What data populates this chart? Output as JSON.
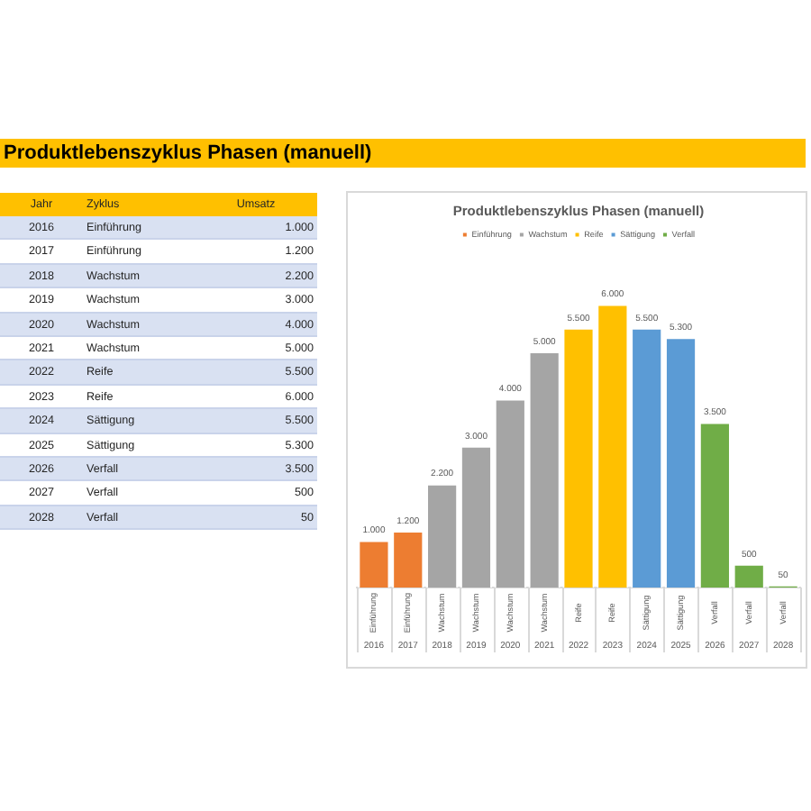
{
  "chart_data": {
    "type": "bar",
    "title": "Produktlebenszyklus Phasen (manuell)",
    "categories": [
      "2016",
      "2017",
      "2018",
      "2019",
      "2020",
      "2021",
      "2022",
      "2023",
      "2024",
      "2025",
      "2026",
      "2027",
      "2028"
    ],
    "series": [
      {
        "name": "Einführung",
        "color": "#ed7d31",
        "values": [
          1000,
          1200,
          null,
          null,
          null,
          null,
          null,
          null,
          null,
          null,
          null,
          null,
          null
        ],
        "value_labels": [
          "1.000",
          "1.200",
          null,
          null,
          null,
          null,
          null,
          null,
          null,
          null,
          null,
          null,
          null
        ]
      },
      {
        "name": "Wachstum",
        "color": "#a5a5a5",
        "values": [
          null,
          null,
          2200,
          3000,
          4000,
          5000,
          null,
          null,
          null,
          null,
          null,
          null,
          null
        ],
        "value_labels": [
          null,
          null,
          "2.200",
          "3.000",
          "4.000",
          "5.000",
          null,
          null,
          null,
          null,
          null,
          null,
          null
        ]
      },
      {
        "name": "Reife",
        "color": "#ffc000",
        "values": [
          null,
          null,
          null,
          null,
          null,
          null,
          5500,
          6000,
          null,
          null,
          null,
          null,
          null
        ],
        "value_labels": [
          null,
          null,
          null,
          null,
          null,
          null,
          "5.500",
          "6.000",
          null,
          null,
          null,
          null,
          null
        ]
      },
      {
        "name": "Sättigung",
        "color": "#5b9bd5",
        "values": [
          null,
          null,
          null,
          null,
          null,
          null,
          null,
          null,
          5500,
          5300,
          null,
          null,
          null
        ],
        "value_labels": [
          null,
          null,
          null,
          null,
          null,
          null,
          null,
          null,
          "5.500",
          "5.300",
          null,
          null,
          null
        ]
      },
      {
        "name": "Verfall",
        "color": "#70ad47",
        "values": [
          null,
          null,
          null,
          null,
          null,
          null,
          null,
          null,
          null,
          null,
          3500,
          500,
          50
        ],
        "value_labels": [
          null,
          null,
          null,
          null,
          null,
          null,
          null,
          null,
          null,
          null,
          "3.500",
          "500",
          "50"
        ]
      }
    ],
    "legend": "top",
    "tick_labels": "x",
    "annotations": [
      "Jahr",
      "Zyklus",
      "Umsatz"
    ]
  }
}
